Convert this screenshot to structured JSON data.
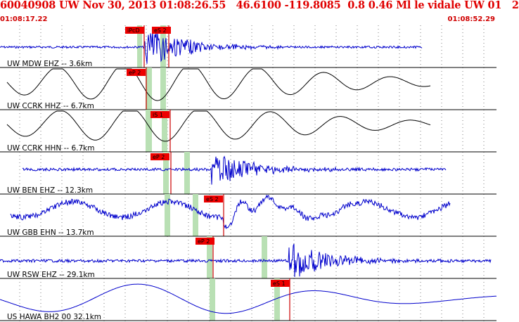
{
  "header": {
    "title": "60040908 UW Nov 30, 2013 01:08:26.55   46.6100 -119.8085  0.8 0.46 Ml le vidale UW 01   2",
    "time_start": "01:08:17.22",
    "time_end": "01:08:52.29"
  },
  "colors": {
    "header_text": "#e00000",
    "pick_flag": "#ee0000",
    "pick_line": "#cc0000",
    "window_band": "#b9e0b4",
    "trace_blue": "#0000cc",
    "trace_black": "#000000",
    "grid": "#000000"
  },
  "traces": [
    {
      "label": "UW MDW EHZ -- 3.6km",
      "color": "blue",
      "picks": [
        {
          "label": "iPcD"
        },
        {
          "label": "eS 2"
        }
      ]
    },
    {
      "label": "UW CCRK HHZ -- 6.7km",
      "color": "black",
      "picks": [
        {
          "label": "eP 2"
        }
      ]
    },
    {
      "label": "UW CCRK HHN -- 6.7km",
      "color": "black",
      "picks": [
        {
          "label": "iS 1"
        }
      ]
    },
    {
      "label": "UW BEN EHZ -- 12.3km",
      "color": "blue",
      "picks": [
        {
          "label": "eP 2"
        }
      ]
    },
    {
      "label": "UW GBB EHN -- 13.7km",
      "color": "blue",
      "picks": [
        {
          "label": "eS 2"
        }
      ]
    },
    {
      "label": "UW RSW EHZ -- 29.1km",
      "color": "blue",
      "picks": [
        {
          "label": "eP 2"
        }
      ]
    },
    {
      "label": "US HAWA BH2 00 32.1km",
      "color": "blue",
      "picks": [
        {
          "label": "eS 1"
        }
      ]
    }
  ]
}
